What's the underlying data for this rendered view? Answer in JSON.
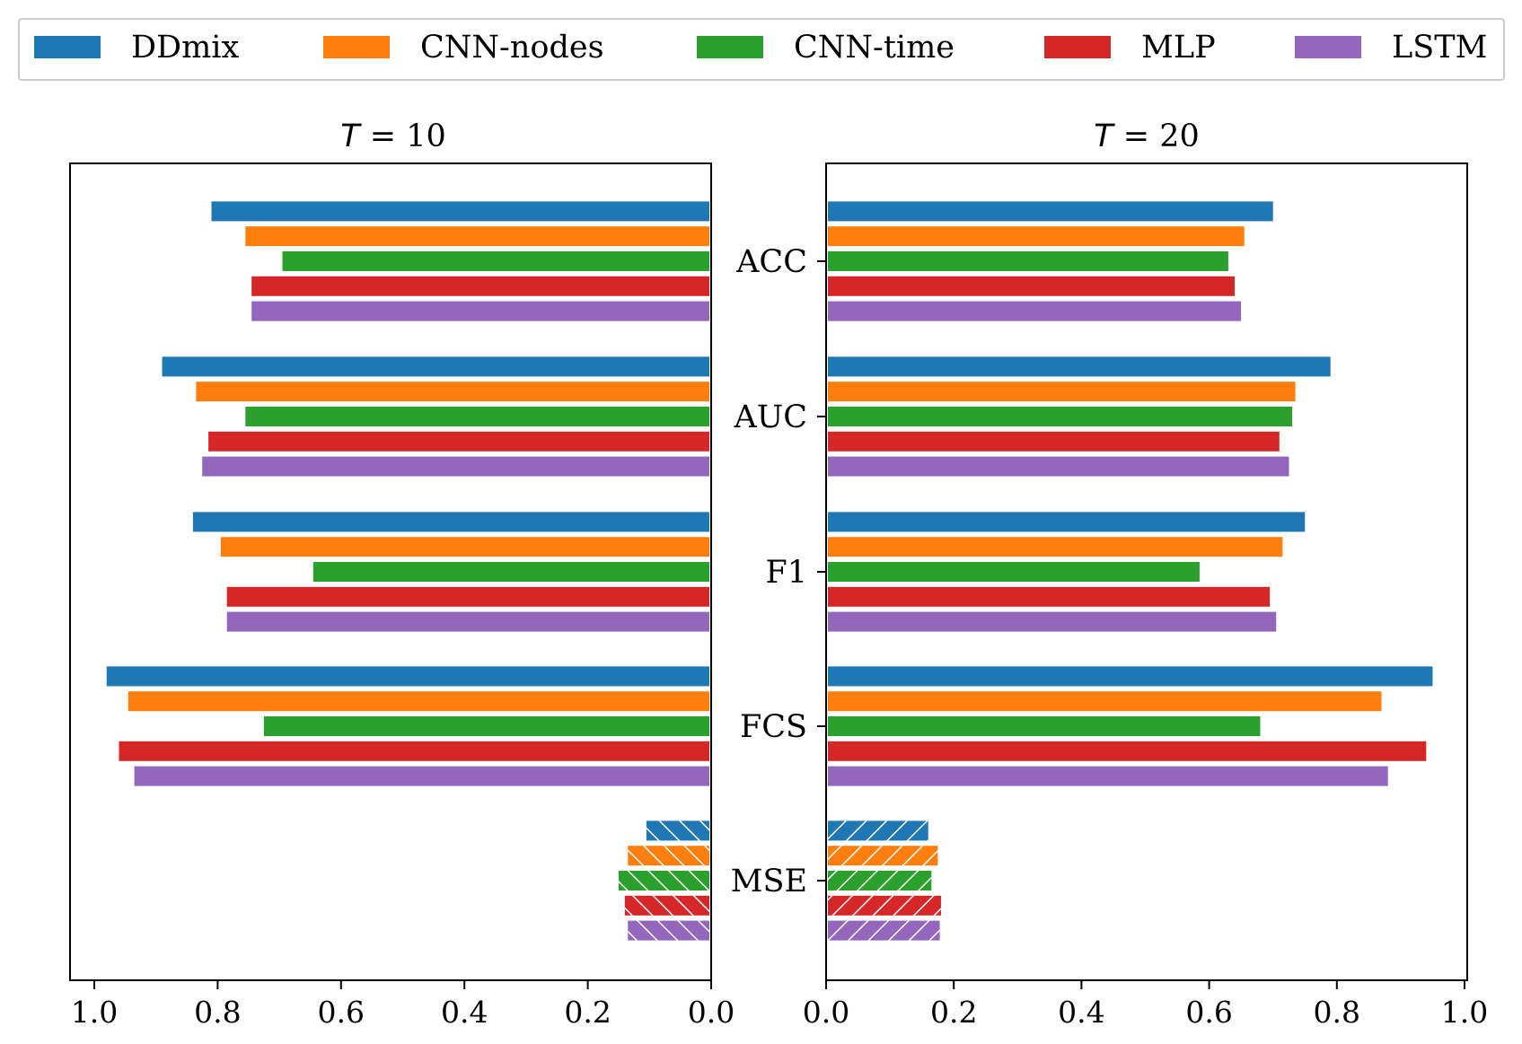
{
  "chart_data": {
    "type": "bar",
    "orientation": "horizontal",
    "categories": [
      "ACC",
      "AUC",
      "F1",
      "FCS",
      "MSE"
    ],
    "hatched_categories": [
      "MSE"
    ],
    "xlim": [
      0,
      1.0
    ],
    "xticks": [
      "0.0",
      "0.2",
      "0.4",
      "0.6",
      "0.8",
      "1.0"
    ],
    "legend": {
      "placement": "top",
      "entries": [
        "DDmix",
        "CNN-nodes",
        "CNN-time",
        "MLP",
        "LSTM"
      ]
    },
    "colors": {
      "DDmix": "#1f77b4",
      "CNN-nodes": "#ff7f0e",
      "CNN-time": "#2ca02c",
      "MLP": "#d62728",
      "LSTM": "#9467bd"
    },
    "panels": [
      {
        "title_symbol": "T",
        "title_rest": " = 10",
        "direction": "reversed",
        "series": [
          {
            "name": "DDmix",
            "values": [
              0.81,
              0.89,
              0.84,
              0.98,
              0.105
            ]
          },
          {
            "name": "CNN-nodes",
            "values": [
              0.755,
              0.835,
              0.795,
              0.945,
              0.135
            ]
          },
          {
            "name": "CNN-time",
            "values": [
              0.695,
              0.755,
              0.645,
              0.725,
              0.15
            ]
          },
          {
            "name": "MLP",
            "values": [
              0.745,
              0.815,
              0.785,
              0.96,
              0.14
            ]
          },
          {
            "name": "LSTM",
            "values": [
              0.745,
              0.825,
              0.785,
              0.935,
              0.135
            ]
          }
        ]
      },
      {
        "title_symbol": "T",
        "title_rest": " = 20",
        "direction": "normal",
        "series": [
          {
            "name": "DDmix",
            "values": [
              0.7,
              0.79,
              0.75,
              0.95,
              0.16
            ]
          },
          {
            "name": "CNN-nodes",
            "values": [
              0.655,
              0.735,
              0.715,
              0.87,
              0.175
            ]
          },
          {
            "name": "CNN-time",
            "values": [
              0.63,
              0.73,
              0.585,
              0.68,
              0.165
            ]
          },
          {
            "name": "MLP",
            "values": [
              0.64,
              0.71,
              0.695,
              0.94,
              0.18
            ]
          },
          {
            "name": "LSTM",
            "values": [
              0.65,
              0.725,
              0.705,
              0.88,
              0.178
            ]
          }
        ]
      }
    ]
  }
}
